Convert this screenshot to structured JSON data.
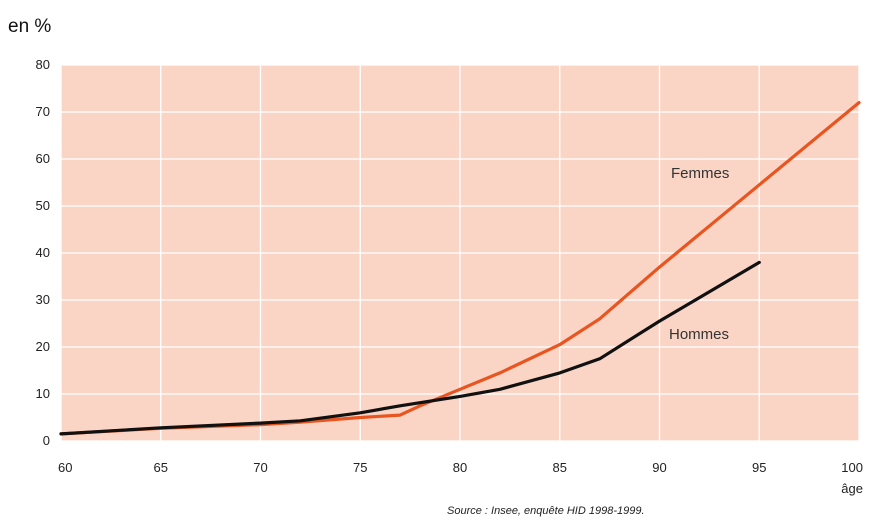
{
  "unit_label": "en %",
  "source": "Source : Insee, enquête HID 1998-1999.",
  "colors": {
    "plot_bg": "#fad5c6",
    "grid": "#ffffff",
    "femmes": "#e95520",
    "hommes": "#111111"
  },
  "chart_data": {
    "type": "line",
    "xlabel": "âge",
    "ylabel": "en %",
    "xlim": [
      60,
      100
    ],
    "ylim": [
      0,
      80
    ],
    "xticks": [
      60,
      65,
      70,
      75,
      80,
      85,
      90,
      95,
      100
    ],
    "yticks": [
      0,
      10,
      20,
      30,
      40,
      50,
      60,
      70,
      80
    ],
    "grid": true,
    "series": [
      {
        "name": "Femmes",
        "color": "#e95520",
        "x": [
          60,
          65,
          70,
          72,
          75,
          77,
          78,
          80,
          82,
          85,
          87,
          90,
          95,
          100
        ],
        "y": [
          1.5,
          2.7,
          3.5,
          4.0,
          5.0,
          5.5,
          7.5,
          11,
          14.5,
          20.5,
          26,
          37,
          54.5,
          72
        ]
      },
      {
        "name": "Hommes",
        "color": "#111111",
        "x": [
          60,
          65,
          70,
          72,
          75,
          77,
          80,
          82,
          85,
          87,
          90,
          95
        ],
        "y": [
          1.5,
          2.8,
          3.8,
          4.3,
          6.0,
          7.5,
          9.5,
          11,
          14.5,
          17.5,
          25.5,
          38
        ]
      }
    ]
  }
}
